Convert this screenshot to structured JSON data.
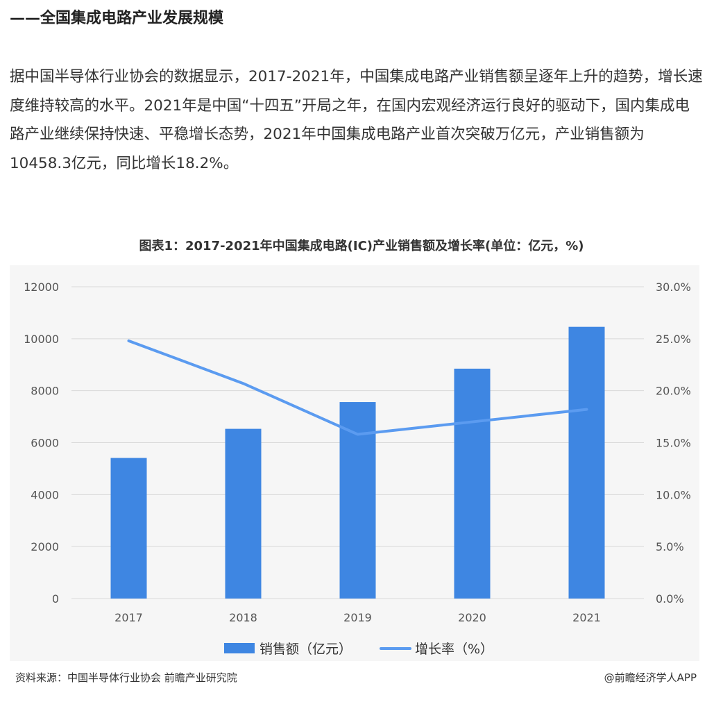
{
  "heading": "——全国集成电路产业发展规模",
  "paragraph": "据中国半导体行业协会的数据显示，2017-2021年，中国集成电路产业销售额呈逐年上升的趋势，增长速度维持较高的水平。2021年是中国“十四五”开局之年，在国内宏观经济运行良好的驱动下，国内集成电路产业继续保持快速、平稳增长态势，2021年中国集成电路产业首次突破万亿元，产业销售额为10458.3亿元，同比增长18.2%。",
  "footer": {
    "source": "资料来源：中国半导体行业协会 前瞻产业研究院",
    "credit": "@前瞻经济学人APP"
  },
  "colors": {
    "bar": "#3e86e2",
    "line": "#5b9bf0",
    "grid": "#d9d9d9",
    "background": "#f6f6f6"
  },
  "chart_data": {
    "type": "bar",
    "title": "图表1：2017-2021年中国集成电路(IC)产业销售额及增长率(单位：亿元，%)",
    "categories": [
      "2017",
      "2018",
      "2019",
      "2020",
      "2021"
    ],
    "series": [
      {
        "name": "销售额（亿元）",
        "type": "bar",
        "axis": "left",
        "values": [
          5411.3,
          6532,
          7562.3,
          8848,
          10458.3
        ]
      },
      {
        "name": "增长率（%）",
        "type": "line",
        "axis": "right",
        "values": [
          24.8,
          20.7,
          15.8,
          17.0,
          18.2
        ]
      }
    ],
    "y_left": {
      "min": 0,
      "max": 12000,
      "ticks": [
        "0",
        "2000",
        "4000",
        "6000",
        "8000",
        "10000",
        "12000"
      ]
    },
    "y_right": {
      "min": 0,
      "max": 30,
      "ticks": [
        "0.0%",
        "5.0%",
        "10.0%",
        "15.0%",
        "20.0%",
        "25.0%",
        "30.0%"
      ]
    },
    "grid": true,
    "legend": "bottom"
  }
}
